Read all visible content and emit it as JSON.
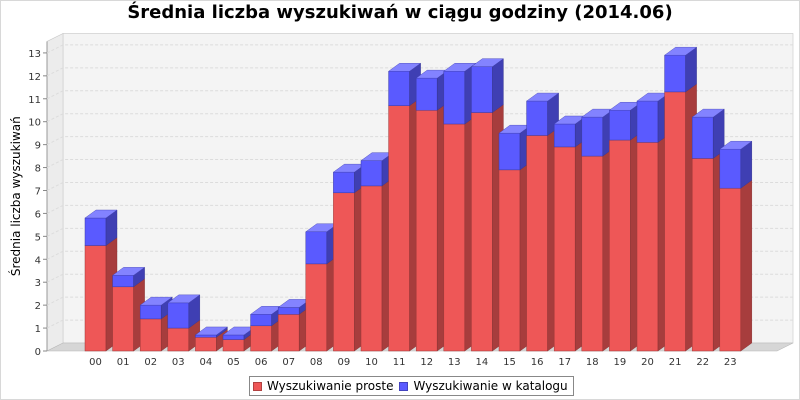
{
  "colors": {
    "series_1": "#ee5757",
    "series_2": "#5a5aff",
    "grid": "#dcdcdc",
    "wall": "#f4f4f4",
    "floor": "#d6d6d6"
  },
  "legend": {
    "items": [
      {
        "label": "Wyszukiwanie proste",
        "color": "#ee5757"
      },
      {
        "label": "Wyszukiwanie w katalogu",
        "color": "#5a5aff"
      }
    ]
  },
  "chart_data": {
    "type": "bar",
    "stacked": true,
    "three_d": true,
    "title": "Średnia liczba wyszukiwań w ciągu godziny (2014.06)",
    "xlabel": "",
    "ylabel": "Średnia liczba wyszukiwań",
    "ylim": [
      0,
      13.5
    ],
    "yticks": [
      0,
      1,
      2,
      3,
      4,
      5,
      6,
      7,
      8,
      9,
      10,
      11,
      12,
      13
    ],
    "grid": true,
    "legend_position": "bottom",
    "categories": [
      "00",
      "01",
      "02",
      "03",
      "04",
      "05",
      "06",
      "07",
      "08",
      "09",
      "10",
      "11",
      "12",
      "13",
      "14",
      "15",
      "16",
      "17",
      "18",
      "19",
      "20",
      "21",
      "22",
      "23"
    ],
    "series": [
      {
        "name": "Wyszukiwanie proste",
        "values": [
          4.6,
          2.8,
          1.4,
          1.0,
          0.6,
          0.5,
          1.1,
          1.6,
          3.8,
          6.9,
          7.2,
          10.7,
          10.5,
          9.9,
          10.4,
          7.9,
          9.4,
          8.9,
          8.5,
          9.2,
          9.1,
          11.3,
          8.4,
          7.1
        ]
      },
      {
        "name": "Wyszukiwanie w katalogu",
        "values": [
          1.2,
          0.5,
          0.6,
          1.1,
          0.1,
          0.2,
          0.5,
          0.3,
          1.4,
          0.9,
          1.1,
          1.5,
          1.4,
          2.3,
          2.0,
          1.6,
          1.5,
          1.0,
          1.7,
          1.3,
          1.8,
          1.6,
          1.8,
          1.7
        ]
      }
    ]
  }
}
